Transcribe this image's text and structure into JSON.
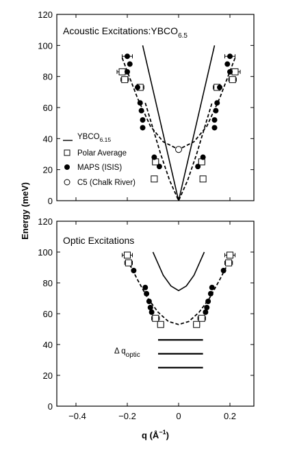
{
  "chart_data": [
    {
      "type": "scatter",
      "title_main": "Acoustic Excitations:YBCO",
      "title_sub": "6.5",
      "xlim": [
        -0.3,
        0.3
      ],
      "ylim": [
        0,
        120
      ],
      "yticks": [
        "0",
        "20",
        "40",
        "60",
        "80",
        "100",
        "120"
      ],
      "legend": {
        "ybco": {
          "main": "YBCO",
          "sub": "6.15"
        },
        "polar": "Polar Average",
        "maps": "MAPS (ISIS)",
        "c5": "C5 (Chalk River)"
      },
      "series": [
        {
          "name": "YBCO6.15",
          "kind": "solid-line",
          "segments": [
            [
              [
                -0.14,
                100
              ],
              [
                0,
                0
              ],
              [
                0.14,
                100
              ]
            ]
          ]
        },
        {
          "name": "dashed-fit",
          "kind": "dashed-line",
          "points": [
            [
              -0.22,
              92
            ],
            [
              -0.16,
              66
            ],
            [
              -0.11,
              48
            ],
            [
              -0.06,
              38
            ],
            [
              0,
              33
            ],
            [
              0.06,
              38
            ],
            [
              0.11,
              48
            ],
            [
              0.16,
              66
            ],
            [
              0.22,
              92
            ]
          ]
        },
        {
          "name": "dashed-fit-lower",
          "kind": "dashed-line",
          "points": [
            [
              -0.13,
              63
            ],
            [
              -0.07,
              30
            ],
            [
              -0.035,
              13
            ],
            [
              0,
              0
            ],
            [
              0.035,
              13
            ],
            [
              0.07,
              30
            ],
            [
              0.13,
              63
            ]
          ]
        },
        {
          "name": "Polar Average",
          "kind": "open-square",
          "points": [
            {
              "x": -0.22,
              "y": 83,
              "xerr": 0.02
            },
            {
              "x": -0.21,
              "y": 78,
              "xerr": 0.015
            },
            {
              "x": -0.15,
              "y": 73,
              "xerr": 0.015
            },
            {
              "x": -0.09,
              "y": 25,
              "xerr": 0.012
            },
            {
              "x": -0.095,
              "y": 14,
              "xerr": 0.01
            },
            {
              "x": 0.22,
              "y": 83,
              "xerr": 0.02
            },
            {
              "x": 0.21,
              "y": 78,
              "xerr": 0.015
            },
            {
              "x": 0.15,
              "y": 73,
              "xerr": 0.015
            },
            {
              "x": 0.09,
              "y": 25,
              "xerr": 0.012
            },
            {
              "x": 0.095,
              "y": 14,
              "xerr": 0.01
            }
          ]
        },
        {
          "name": "MAPS (ISIS)",
          "kind": "filled-circle",
          "points": [
            {
              "x": -0.2,
              "y": 93,
              "xerr": 0.02
            },
            {
              "x": -0.19,
              "y": 88
            },
            {
              "x": -0.2,
              "y": 83
            },
            {
              "x": -0.16,
              "y": 73
            },
            {
              "x": -0.15,
              "y": 63
            },
            {
              "x": -0.145,
              "y": 58
            },
            {
              "x": -0.14,
              "y": 52
            },
            {
              "x": -0.14,
              "y": 47
            },
            {
              "x": -0.095,
              "y": 28
            },
            {
              "x": -0.075,
              "y": 22
            },
            {
              "x": 0.2,
              "y": 93,
              "xerr": 0.02
            },
            {
              "x": 0.19,
              "y": 88
            },
            {
              "x": 0.2,
              "y": 83
            },
            {
              "x": 0.16,
              "y": 73
            },
            {
              "x": 0.15,
              "y": 63
            },
            {
              "x": 0.145,
              "y": 58
            },
            {
              "x": 0.14,
              "y": 52
            },
            {
              "x": 0.14,
              "y": 47
            },
            {
              "x": 0.095,
              "y": 28
            },
            {
              "x": 0.075,
              "y": 22
            }
          ]
        },
        {
          "name": "C5 (Chalk River)",
          "kind": "open-circle",
          "points": [
            {
              "x": 0,
              "y": 33
            }
          ]
        }
      ]
    },
    {
      "type": "scatter",
      "title_main": "Optic Excitations",
      "xlim": [
        -0.3,
        0.3
      ],
      "ylim": [
        0,
        120
      ],
      "xticks": [
        -0.4,
        -0.2,
        0,
        0.2
      ],
      "xtick_labels": [
        "−0.4",
        "−0.2",
        "0",
        "0.2"
      ],
      "yticks": [
        "0",
        "20",
        "40",
        "60",
        "80",
        "100",
        "120"
      ],
      "annotation": {
        "main": "Δ q",
        "sub": "optic"
      },
      "resolution_bars": [
        {
          "x0": -0.08,
          "x1": 0.095,
          "y": 43
        },
        {
          "x0": -0.08,
          "x1": 0.095,
          "y": 34
        },
        {
          "x0": -0.08,
          "x1": 0.095,
          "y": 25
        }
      ],
      "series": [
        {
          "name": "solid-fit",
          "kind": "solid-line",
          "points": [
            [
              -0.1,
              100
            ],
            [
              -0.06,
              85
            ],
            [
              -0.03,
              78
            ],
            [
              0,
              75
            ],
            [
              0.03,
              78
            ],
            [
              0.06,
              85
            ],
            [
              0.1,
              100
            ]
          ]
        },
        {
          "name": "dashed-fit",
          "kind": "dashed-line",
          "points": [
            [
              -0.2,
              95
            ],
            [
              -0.16,
              82
            ],
            [
              -0.12,
              70
            ],
            [
              -0.08,
              61
            ],
            [
              -0.04,
              55
            ],
            [
              0,
              53
            ],
            [
              0.04,
              55
            ],
            [
              0.08,
              61
            ],
            [
              0.12,
              70
            ],
            [
              0.16,
              82
            ],
            [
              0.2,
              95
            ]
          ]
        },
        {
          "name": "Polar Average",
          "kind": "open-square",
          "points": [
            {
              "x": -0.2,
              "y": 98,
              "xerr": 0.02
            },
            {
              "x": -0.195,
              "y": 93,
              "xerr": 0.015
            },
            {
              "x": -0.09,
              "y": 57,
              "xerr": 0.015
            },
            {
              "x": -0.07,
              "y": 53,
              "xerr": 0.012
            },
            {
              "x": 0.2,
              "y": 98,
              "xerr": 0.02
            },
            {
              "x": 0.195,
              "y": 93,
              "xerr": 0.015
            },
            {
              "x": 0.09,
              "y": 57,
              "xerr": 0.015
            },
            {
              "x": 0.07,
              "y": 53,
              "xerr": 0.012
            }
          ]
        },
        {
          "name": "MAPS (ISIS)",
          "kind": "filled-circle",
          "points": [
            {
              "x": -0.175,
              "y": 88
            },
            {
              "x": -0.13,
              "y": 77
            },
            {
              "x": -0.125,
              "y": 73
            },
            {
              "x": -0.115,
              "y": 68
            },
            {
              "x": -0.11,
              "y": 64
            },
            {
              "x": -0.105,
              "y": 61
            },
            {
              "x": 0.175,
              "y": 88
            },
            {
              "x": 0.13,
              "y": 77
            },
            {
              "x": 0.125,
              "y": 73
            },
            {
              "x": 0.115,
              "y": 68
            },
            {
              "x": 0.11,
              "y": 64
            },
            {
              "x": 0.105,
              "y": 61
            }
          ]
        }
      ]
    }
  ],
  "ylabel": "Energy (meV)",
  "xlabel": {
    "main": "q (Å",
    "sup": "−1",
    "close": ")"
  }
}
